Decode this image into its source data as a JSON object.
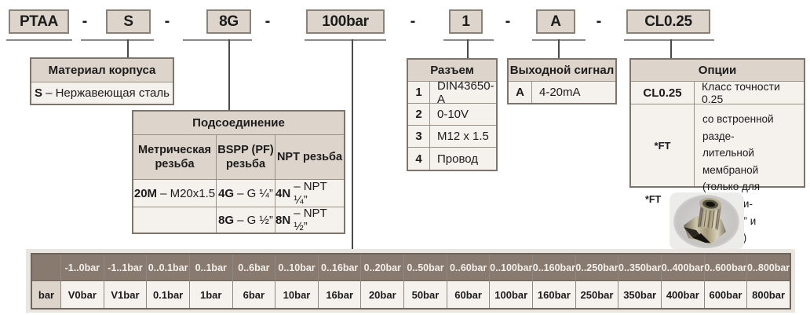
{
  "product_code": {
    "separator": "-",
    "segments": [
      "PTAA",
      "S",
      "8G",
      "100bar",
      "1",
      "A",
      "CL0.25"
    ]
  },
  "material_table": {
    "title": "Материал корпуса",
    "row": {
      "code": "S",
      "desc": "– Нержавеющая сталь"
    }
  },
  "connection_table": {
    "title": "Подсоединение",
    "col1_header": "Метрическая резьба",
    "col2_header": "BSPP (PF) резьба",
    "col3_header": "NPT резьба",
    "rows": [
      {
        "c1": {
          "code": "20M",
          "desc": "– M20x1.5"
        },
        "c2": {
          "code": "4G",
          "desc": "– G ¼”"
        },
        "c3": {
          "code": "4N",
          "desc": "– NPT ¼”"
        }
      },
      {
        "c1": {
          "code": "",
          "desc": ""
        },
        "c2": {
          "code": "8G",
          "desc": "– G ½”"
        },
        "c3": {
          "code": "8N",
          "desc": "– NPT ½”"
        }
      }
    ]
  },
  "connector_table": {
    "title": "Разъем",
    "rows": [
      {
        "code": "1",
        "desc": "DIN43650-A"
      },
      {
        "code": "2",
        "desc": "0-10V"
      },
      {
        "code": "3",
        "desc": "M12 x 1.5"
      },
      {
        "code": "4",
        "desc": "Провод"
      }
    ]
  },
  "output_table": {
    "title": "Выходной сигнал",
    "row": {
      "code": "A",
      "desc": "4-20mA"
    }
  },
  "options_table": {
    "title": "Опции",
    "row1": {
      "code": "CL0.25",
      "desc": "Класс точности 0.25"
    },
    "row2": {
      "code": "*FT",
      "desc_lines": [
        "со встроенной разде-",
        "лительной мембраной",
        "(только для подсоеди-",
        "нений ½” и M20x1.5)"
      ]
    }
  },
  "ft_photo": {
    "label": "*FT",
    "icon": "pressure-fitting-photo"
  },
  "pressure_table": {
    "row_label": "bar",
    "ranges": [
      "-1..0bar",
      "-1..1bar",
      "0..0.1bar",
      "0..1bar",
      "0..6bar",
      "0..10bar",
      "0..16bar",
      "0..20bar",
      "0..50bar",
      "0..60bar",
      "0..100bar",
      "0..160bar",
      "0..250bar",
      "0..350bar",
      "0..400bar",
      "0..600bar",
      "0..800bar"
    ],
    "codes": [
      "V0bar",
      "V1bar",
      "0.1bar",
      "1bar",
      "6bar",
      "10bar",
      "16bar",
      "20bar",
      "50bar",
      "60bar",
      "100bar",
      "160bar",
      "250bar",
      "350bar",
      "400bar",
      "600bar",
      "800bar"
    ]
  },
  "colors": {
    "box_fill": "#ddd4cb",
    "header_brown": "#887a6f",
    "cell_fill": "#f5f1ed",
    "band": "#ebe5df",
    "border_gray": "#8a8276"
  }
}
